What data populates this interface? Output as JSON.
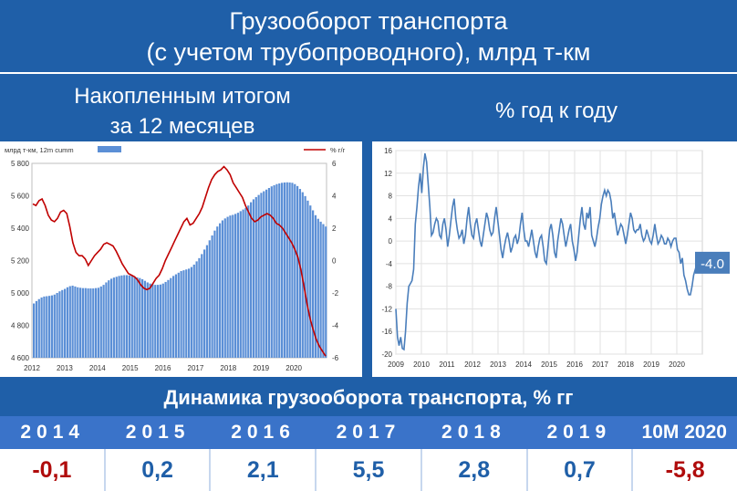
{
  "header": {
    "title_line1": "Грузооборот транспорта",
    "title_line2": "(с учетом трубопроводного), млрд т-км"
  },
  "subtitles": {
    "left_line1": "Накопленным итогом",
    "left_line2": "за 12 месяцев",
    "right": "% год к году"
  },
  "dynamics": {
    "title": "Динамика грузооборота транспорта, % гг",
    "columns": [
      {
        "label": "2014",
        "value": "-0,1"
      },
      {
        "label": "2015",
        "value": "0,2"
      },
      {
        "label": "2016",
        "value": "2,1"
      },
      {
        "label": "2017",
        "value": "5,5"
      },
      {
        "label": "2018",
        "value": "2,8"
      },
      {
        "label": "2019",
        "value": "0,7"
      },
      {
        "label": "10M 2020",
        "value": "-5,8"
      }
    ]
  },
  "colors": {
    "background": "#1f5fa8",
    "bars": "#5b8fd6",
    "line_red": "#c00000",
    "line_blue": "#4a7ebb",
    "negative": "#b00c0c",
    "positive": "#1f5fa8"
  },
  "chart_data": [
    {
      "type": "bar",
      "legend": [
        "млрд т-км, 12m cumm",
        "% г/г"
      ],
      "x_ticks": [
        "2012",
        "2013",
        "2014",
        "2015",
        "2016",
        "2017",
        "2018",
        "2019",
        "2020"
      ],
      "left_ticks": [
        "4 600",
        "4 800",
        "5 000",
        "5 200",
        "5 400",
        "5 600",
        "5 800"
      ],
      "right_ticks": [
        "-6",
        "-4",
        "-2",
        "0",
        "2",
        "4",
        "6"
      ],
      "ylim_left": [
        4600,
        5800
      ],
      "ylim_right": [
        -6,
        6
      ],
      "x_start": 2012,
      "series": [
        {
          "name": "млрд т-км, 12m cumm",
          "kind": "bar",
          "axis": "left",
          "values": [
            4935,
            4950,
            4962,
            4972,
            4978,
            4980,
            4982,
            4985,
            4990,
            5000,
            5010,
            5018,
            5025,
            5035,
            5042,
            5045,
            5040,
            5035,
            5032,
            5030,
            5030,
            5028,
            5028,
            5028,
            5030,
            5032,
            5040,
            5050,
            5065,
            5078,
            5088,
            5095,
            5100,
            5105,
            5108,
            5110,
            5110,
            5108,
            5105,
            5100,
            5096,
            5092,
            5085,
            5075,
            5065,
            5058,
            5053,
            5050,
            5050,
            5052,
            5058,
            5068,
            5080,
            5092,
            5105,
            5115,
            5125,
            5135,
            5140,
            5145,
            5150,
            5160,
            5175,
            5195,
            5215,
            5240,
            5268,
            5295,
            5325,
            5355,
            5385,
            5410,
            5430,
            5448,
            5460,
            5470,
            5478,
            5482,
            5488,
            5495,
            5505,
            5515,
            5525,
            5540,
            5560,
            5578,
            5592,
            5605,
            5618,
            5628,
            5638,
            5648,
            5658,
            5665,
            5672,
            5676,
            5680,
            5682,
            5683,
            5682,
            5680,
            5672,
            5660,
            5642,
            5622,
            5598,
            5570,
            5540,
            5510,
            5480,
            5458,
            5440,
            5425,
            5410
          ]
        },
        {
          "name": "% г/г",
          "kind": "line",
          "axis": "right",
          "values": [
            3.5,
            3.4,
            3.7,
            3.8,
            3.4,
            2.8,
            2.5,
            2.4,
            2.6,
            3.0,
            3.1,
            2.9,
            2.1,
            1.1,
            0.5,
            0.3,
            0.3,
            0.1,
            -0.3,
            0.0,
            0.3,
            0.5,
            0.7,
            1.0,
            1.1,
            1.0,
            0.9,
            0.6,
            0.2,
            -0.2,
            -0.5,
            -0.8,
            -0.9,
            -1.0,
            -1.2,
            -1.5,
            -1.7,
            -1.8,
            -1.7,
            -1.4,
            -1.1,
            -0.9,
            -0.5,
            0.0,
            0.4,
            0.8,
            1.2,
            1.6,
            2.0,
            2.4,
            2.6,
            2.2,
            2.3,
            2.6,
            2.9,
            3.3,
            3.9,
            4.5,
            5.0,
            5.3,
            5.5,
            5.6,
            5.8,
            5.6,
            5.3,
            4.8,
            4.5,
            4.2,
            3.9,
            3.4,
            3.0,
            2.6,
            2.4,
            2.5,
            2.7,
            2.8,
            2.9,
            2.8,
            2.6,
            2.3,
            2.2,
            2.0,
            1.7,
            1.4,
            1.1,
            0.7,
            0.2,
            -0.6,
            -1.6,
            -2.7,
            -3.6,
            -4.3,
            -4.9,
            -5.3,
            -5.6,
            -5.9
          ]
        }
      ]
    },
    {
      "type": "line",
      "x_ticks": [
        "2009",
        "2010",
        "2011",
        "2012",
        "2013",
        "2014",
        "2015",
        "2016",
        "2017",
        "2018",
        "2019",
        "2020"
      ],
      "y_ticks": [
        "-20",
        "-16",
        "-12",
        "-8",
        "-4",
        "0",
        "4",
        "8",
        "12",
        "16"
      ],
      "ylim": [
        -20,
        16
      ],
      "x_start": 2009,
      "annotation": "-4.0",
      "series": [
        {
          "name": "% год к году",
          "values": [
            -12,
            -17,
            -18.5,
            -17,
            -19,
            -19.2,
            -16,
            -11,
            -8,
            -7.5,
            -7,
            -5,
            3,
            6,
            9.5,
            12,
            8.5,
            13,
            15.5,
            14,
            10,
            6,
            1,
            1.5,
            3,
            4,
            3.5,
            1,
            0.5,
            3,
            4,
            2,
            -1,
            1,
            3.5,
            6,
            7.5,
            4,
            2,
            0.5,
            1,
            2,
            -0.5,
            1,
            4,
            6,
            3,
            1,
            0.5,
            3,
            4,
            2,
            0,
            -1,
            1,
            3,
            5,
            4,
            2,
            1,
            1.5,
            4,
            6,
            3.5,
            1,
            -1.5,
            -3,
            -1,
            0.5,
            1.5,
            0,
            -2,
            -1,
            0.5,
            1,
            -0.5,
            0.5,
            3,
            5,
            2,
            0,
            0,
            -1,
            0.5,
            2,
            0,
            -2,
            -3,
            -1,
            0.5,
            1,
            -1,
            -3.5,
            -4,
            -1,
            2,
            3,
            1,
            -2,
            -3,
            0,
            2,
            4,
            3,
            1,
            -1,
            0.5,
            2,
            3,
            0,
            -1.5,
            -3.5,
            -2,
            1,
            4,
            6,
            3,
            2,
            5,
            4,
            6,
            1,
            0,
            -1,
            0.5,
            2.5,
            4,
            6.5,
            8,
            9,
            8,
            9,
            8.5,
            7,
            4,
            5,
            3,
            1,
            2,
            3,
            2.5,
            1,
            -0.5,
            1,
            3,
            5,
            4,
            2,
            1.5,
            2,
            2,
            3,
            1,
            0,
            0.5,
            2,
            1,
            0,
            -0.5,
            1,
            3,
            1,
            -0.5,
            0,
            1,
            0.5,
            -0.5,
            -0.5,
            0.5,
            0,
            -1,
            0,
            0.5,
            0.5,
            -1.5,
            -2,
            -4,
            -3,
            -6,
            -7,
            -8.5,
            -9.5,
            -9.5,
            -8,
            -6,
            -5,
            -4,
            -4
          ]
        }
      ]
    }
  ]
}
